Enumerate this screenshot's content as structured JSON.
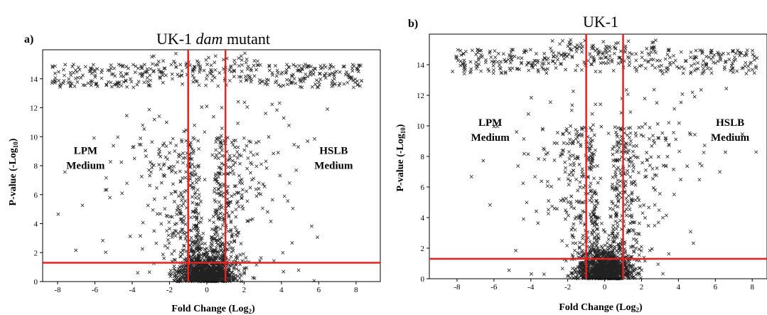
{
  "chart_data": [
    {
      "type": "scatter",
      "panel_label": "a)",
      "title_prefix": "UK-1 ",
      "title_italic": "dam",
      "title_suffix": " mutant",
      "xlabel": "Fold Change (Log",
      "xlabel_sub": "2",
      "xlabel_end": ")",
      "ylabel": "P-value  (-Log",
      "ylabel_sub": "10",
      "ylabel_end": ")",
      "xlim": [
        -8.8,
        9.3
      ],
      "ylim": [
        0,
        16
      ],
      "xticks": [
        -8,
        -6,
        -4,
        -2,
        0,
        2,
        4,
        6,
        8
      ],
      "yticks": [
        0,
        2,
        4,
        6,
        8,
        10,
        12,
        14
      ],
      "thresholds": {
        "x": [
          -1,
          1
        ],
        "y": 1.3,
        "color": "#e8201f"
      },
      "annotations": [
        {
          "lines": [
            "LPM",
            "Medium"
          ],
          "x": -6.5,
          "y": 8.8
        },
        {
          "lines": [
            "HSLB",
            "Medium"
          ],
          "x": 6.8,
          "y": 8.8
        }
      ],
      "marker_color": "#222222",
      "seed": 17
    },
    {
      "type": "scatter",
      "panel_label": "b)",
      "title_prefix": "UK-1",
      "title_italic": "",
      "title_suffix": "",
      "xlabel": "Fold Change (Log",
      "xlabel_sub": "2",
      "xlabel_end": ")",
      "ylabel": "P-value  (-Log",
      "ylabel_sub": "10",
      "ylabel_end": ")",
      "xlim": [
        -9.5,
        8.8
      ],
      "ylim": [
        0,
        16
      ],
      "xticks": [
        -8,
        -6,
        -4,
        -2,
        0,
        2,
        4,
        6,
        8
      ],
      "yticks": [
        0,
        2,
        4,
        6,
        8,
        10,
        12,
        14
      ],
      "thresholds": {
        "x": [
          -1,
          1
        ],
        "y": 1.3,
        "color": "#e8201f"
      },
      "annotations": [
        {
          "lines": [
            "LPM",
            "Medium"
          ],
          "x": -6.2,
          "y": 10.0
        },
        {
          "lines": [
            "HSLB",
            "Medium"
          ],
          "x": 6.8,
          "y": 10.0
        }
      ],
      "marker_color": "#222222",
      "seed": 41
    }
  ]
}
